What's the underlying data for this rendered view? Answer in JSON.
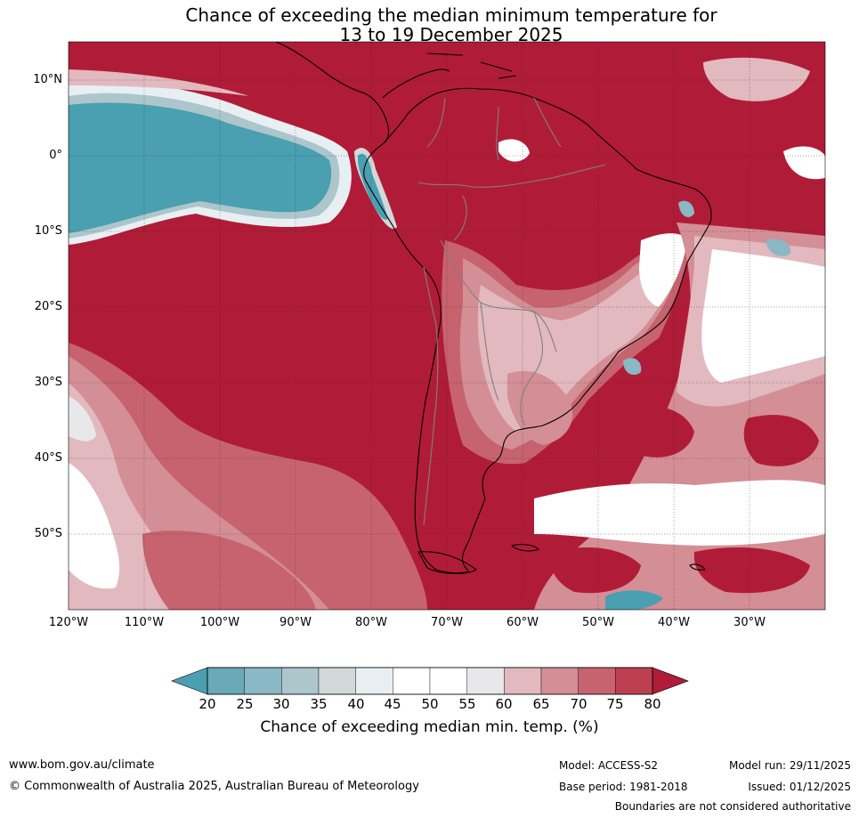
{
  "title": {
    "line1": "Chance of exceeding the median minimum temperature for",
    "line2": "13 to 19 December 2025"
  },
  "map": {
    "region": "South America and surrounding oceans",
    "lat_labels": [
      "10°N",
      "0°",
      "10°S",
      "20°S",
      "30°S",
      "40°S",
      "50°S"
    ],
    "lon_labels": [
      "120°W",
      "110°W",
      "100°W",
      "90°W",
      "80°W",
      "70°W",
      "60°W",
      "50°W",
      "40°W",
      "30°W"
    ],
    "lat_range": [
      -60,
      15
    ],
    "lon_range": [
      -120,
      -20
    ]
  },
  "colorbar": {
    "ticks": [
      "20",
      "25",
      "30",
      "35",
      "40",
      "45",
      "50",
      "55",
      "60",
      "65",
      "70",
      "75",
      "80"
    ],
    "colors": [
      "#6aa9b6",
      "#8ab8c4",
      "#acc6cc",
      "#d3d9d8",
      "#e8eff2",
      "#ffffff",
      "#ffffff",
      "#e8e8ea",
      "#e2b9bf",
      "#d48e96",
      "#c6636f",
      "#bd4050"
    ],
    "under_color": "#4a9fb0",
    "over_color": "#b01c37",
    "label": "Chance of exceeding median min. temp. (%)"
  },
  "footer": {
    "url": "www.bom.gov.au/climate",
    "copyright": "© Commonwealth of Australia 2025, Australian Bureau of Meteorology",
    "model": "Model: ACCESS-S2",
    "base_period": "Base period: 1981-2018",
    "model_run": "Model run: 29/11/2025",
    "issued": "Issued: 01/12/2025",
    "disclaimer": "Boundaries are not considered authoritative"
  }
}
